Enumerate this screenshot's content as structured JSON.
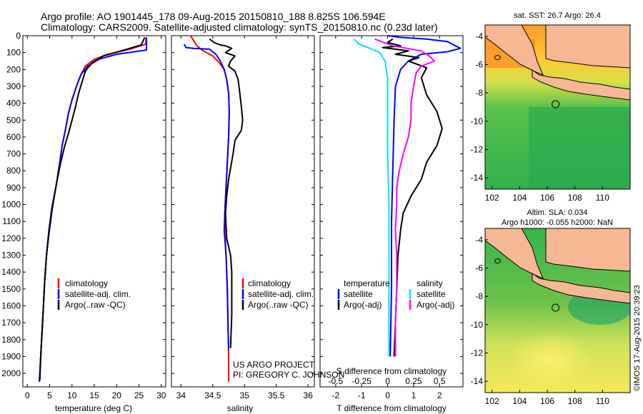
{
  "header": {
    "line1": "Argo profile: AO 1901445_178 09-Aug-2015 20150810_188 8.825S 106.594E",
    "line2": "Climatology: CARS2009. Satellite-adjusted climatology: synTS_20150810.nc (0.23d later)"
  },
  "credits": {
    "project": "US ARGO PROJECT",
    "pi": "PI: GREGORY C. JOHNSON"
  },
  "watermark": "©IMOS 17-Aug-2015 20:39:23",
  "colors": {
    "climatology": "#ff0000",
    "satellite": "#0000ff",
    "argo": "#000000",
    "sal_satellite": "#00e5ee",
    "sal_argo": "#ff00ff",
    "land": "#f6b894",
    "ocean_green": "#22b14c"
  },
  "chart_data": [
    {
      "id": "temperature",
      "type": "line",
      "xlabel": "temperature (deg C)",
      "ylabel": "",
      "xlim": [
        -1,
        31
      ],
      "ylim": [
        2080,
        0
      ],
      "xticks": [
        0,
        5,
        10,
        15,
        20,
        25,
        30
      ],
      "yticks": [
        0,
        100,
        200,
        300,
        400,
        500,
        600,
        700,
        800,
        900,
        1000,
        1100,
        1200,
        1300,
        1400,
        1500,
        1600,
        1700,
        1800,
        1900,
        2000
      ],
      "legend": {
        "placement": "lower-middle",
        "entries": [
          "climatology",
          "satellite-adj. clim.",
          "Argo(..raw -QC)"
        ]
      },
      "series": [
        {
          "name": "climatology",
          "color": "#ff0000",
          "points": [
            [
              26.6,
              10
            ],
            [
              26.5,
              50
            ],
            [
              23,
              80
            ],
            [
              18,
              110
            ],
            [
              15,
              140
            ],
            [
              13,
              180
            ],
            [
              12,
              230
            ],
            [
              11,
              300
            ],
            [
              10,
              380
            ],
            [
              9.2,
              460
            ],
            [
              8.5,
              560
            ],
            [
              7.8,
              650
            ],
            [
              7.2,
              760
            ],
            [
              6.5,
              880
            ],
            [
              5.5,
              1020
            ],
            [
              4.8,
              1160
            ],
            [
              4.3,
              1300
            ],
            [
              3.9,
              1450
            ],
            [
              3.6,
              1600
            ],
            [
              3.3,
              1750
            ],
            [
              3,
              1900
            ],
            [
              2.7,
              2050
            ]
          ]
        },
        {
          "name": "satellite-adj. clim.",
          "color": "#0000ff",
          "points": [
            [
              26.7,
              10
            ],
            [
              26.7,
              85
            ],
            [
              20,
              110
            ],
            [
              16,
              140
            ],
            [
              13.5,
              180
            ],
            [
              12,
              230
            ],
            [
              11,
              300
            ],
            [
              10,
              380
            ],
            [
              9.2,
              460
            ],
            [
              8.5,
              560
            ],
            [
              7.8,
              650
            ],
            [
              7.2,
              760
            ],
            [
              6.5,
              880
            ],
            [
              5.5,
              1020
            ],
            [
              4.8,
              1160
            ],
            [
              4.3,
              1300
            ],
            [
              3.9,
              1450
            ],
            [
              3.6,
              1600
            ],
            [
              3.3,
              1750
            ],
            [
              3,
              1900
            ],
            [
              2.7,
              2050
            ]
          ]
        },
        {
          "name": "Argo(..raw -QC)",
          "color": "#000000",
          "points": [
            [
              26.3,
              10
            ],
            [
              25.5,
              55
            ],
            [
              21,
              90
            ],
            [
              17,
              120
            ],
            [
              14.5,
              160
            ],
            [
              13,
              210
            ],
            [
              12.3,
              270
            ],
            [
              11.5,
              340
            ],
            [
              10.8,
              420
            ],
            [
              10,
              500
            ],
            [
              9.2,
              580
            ],
            [
              8.3,
              660
            ],
            [
              7.4,
              760
            ],
            [
              6.5,
              880
            ],
            [
              5.6,
              1020
            ],
            [
              4.9,
              1160
            ],
            [
              4.3,
              1300
            ],
            [
              3.9,
              1450
            ],
            [
              3.6,
              1600
            ],
            [
              3.3,
              1750
            ],
            [
              3,
              1900
            ],
            [
              2.8,
              2040
            ]
          ]
        }
      ]
    },
    {
      "id": "salinity",
      "type": "line",
      "xlabel": "salinity",
      "ylabel": "",
      "xlim": [
        33.85,
        36.1
      ],
      "ylim": [
        2080,
        0
      ],
      "xticks": [
        34,
        34.5,
        35,
        35.5,
        36
      ],
      "legend": {
        "placement": "lower-middle",
        "entries": [
          "climatology",
          "satellite-adj. clim.",
          "Argo(..raw -QC)"
        ]
      },
      "series": [
        {
          "name": "climatology",
          "color": "#ff0000",
          "points": [
            [
              34.15,
              0
            ],
            [
              34.2,
              30
            ],
            [
              34.25,
              60
            ],
            [
              34.35,
              90
            ],
            [
              34.5,
              120
            ],
            [
              34.6,
              160
            ],
            [
              34.68,
              200
            ],
            [
              34.72,
              260
            ],
            [
              34.75,
              340
            ],
            [
              34.76,
              450
            ],
            [
              34.75,
              600
            ],
            [
              34.73,
              750
            ],
            [
              34.71,
              900
            ],
            [
              34.69,
              1050
            ],
            [
              34.69,
              1150
            ],
            [
              34.71,
              1300
            ],
            [
              34.73,
              1500
            ],
            [
              34.74,
              1700
            ],
            [
              34.75,
              1900
            ],
            [
              34.75,
              2050
            ]
          ]
        },
        {
          "name": "satellite-adj. clim.",
          "color": "#0000ff",
          "points": [
            [
              34.05,
              50
            ],
            [
              34.08,
              70
            ],
            [
              34.2,
              75
            ],
            [
              34.45,
              80
            ],
            [
              34.55,
              110
            ],
            [
              34.62,
              150
            ],
            [
              34.68,
              200
            ],
            [
              34.72,
              260
            ],
            [
              34.75,
              340
            ],
            [
              34.76,
              450
            ],
            [
              34.75,
              600
            ],
            [
              34.73,
              750
            ],
            [
              34.71,
              900
            ],
            [
              34.69,
              1050
            ],
            [
              34.68,
              1150
            ],
            [
              34.71,
              1300
            ],
            [
              34.73,
              1500
            ],
            [
              34.74,
              1700
            ],
            [
              34.75,
              1860
            ]
          ]
        },
        {
          "name": "Argo(..raw -QC)",
          "color": "#000000",
          "points": [
            [
              34.45,
              20
            ],
            [
              34.52,
              40
            ],
            [
              34.62,
              55
            ],
            [
              34.7,
              60
            ],
            [
              34.8,
              75
            ],
            [
              34.7,
              100
            ],
            [
              34.85,
              120
            ],
            [
              34.78,
              150
            ],
            [
              34.75,
              180
            ],
            [
              34.85,
              210
            ],
            [
              34.9,
              260
            ],
            [
              34.92,
              320
            ],
            [
              34.95,
              420
            ],
            [
              34.97,
              500
            ],
            [
              34.95,
              560
            ],
            [
              34.85,
              620
            ],
            [
              34.82,
              700
            ],
            [
              34.75,
              850
            ],
            [
              34.72,
              950
            ],
            [
              34.7,
              1050
            ],
            [
              34.72,
              1200
            ],
            [
              34.78,
              1300
            ],
            [
              34.8,
              1400
            ],
            [
              34.8,
              1500
            ],
            [
              34.8,
              1650
            ],
            [
              34.78,
              1850
            ]
          ]
        }
      ]
    },
    {
      "id": "differences",
      "type": "line",
      "xlabel": "T difference from climatology",
      "x2label": "S difference from climatology",
      "ylabel": "",
      "xlim": [
        -2.6,
        2.9
      ],
      "ylim": [
        2080,
        0
      ],
      "xticks": [
        -2,
        -1,
        0,
        1,
        2
      ],
      "x2ticks": [
        {
          "v": -0.5,
          "label": "-0.5"
        },
        {
          "v": -0.25,
          "label": "-0.25"
        },
        {
          "v": 0,
          "label": "0"
        },
        {
          "v": 0.25,
          "label": "0.25"
        },
        {
          "v": 0.5,
          "label": "0.5"
        }
      ],
      "x2scale": 4,
      "legend": {
        "placement": "lower-middle",
        "group_titles": [
          "temperature",
          "salinity"
        ],
        "entries": [
          "satellite",
          "Argo(-adj)",
          "satellite",
          "Argo(-adj)"
        ]
      },
      "series": [
        {
          "name": "satellite",
          "group": "temperature",
          "color": "#0000ff",
          "points": [
            [
              0,
              0
            ],
            [
              0.5,
              10
            ],
            [
              1.5,
              20
            ],
            [
              2.3,
              35
            ],
            [
              2.8,
              75
            ],
            [
              2.3,
              95
            ],
            [
              1.3,
              110
            ],
            [
              0.8,
              150
            ],
            [
              0.5,
              200
            ],
            [
              0.3,
              300
            ],
            [
              0.25,
              500
            ],
            [
              0.2,
              800
            ],
            [
              0.15,
              1100
            ],
            [
              0.15,
              1500
            ],
            [
              0.1,
              1900
            ]
          ]
        },
        {
          "name": "Argo(-adj)",
          "group": "temperature",
          "color": "#000000",
          "points": [
            [
              0.2,
              20
            ],
            [
              0,
              40
            ],
            [
              0.5,
              60
            ],
            [
              -0.2,
              70
            ],
            [
              0.8,
              90
            ],
            [
              0.3,
              110
            ],
            [
              1.2,
              130
            ],
            [
              0.8,
              150
            ],
            [
              1.5,
              190
            ],
            [
              1.3,
              250
            ],
            [
              1.5,
              350
            ],
            [
              1.9,
              450
            ],
            [
              2.1,
              550
            ],
            [
              1.9,
              650
            ],
            [
              1.5,
              750
            ],
            [
              1.3,
              850
            ],
            [
              0.9,
              950
            ],
            [
              0.6,
              1050
            ],
            [
              0.5,
              1150
            ],
            [
              0.4,
              1300
            ],
            [
              0.35,
              1500
            ],
            [
              0.3,
              1700
            ],
            [
              0.25,
              1900
            ]
          ]
        },
        {
          "name": "satellite",
          "group": "salinity",
          "color": "#00e5ee",
          "points": [
            [
              -1.3,
              20
            ],
            [
              -1.1,
              50
            ],
            [
              -0.6,
              80
            ],
            [
              -0.3,
              100
            ],
            [
              -0.1,
              150
            ],
            [
              0,
              250
            ],
            [
              0,
              400
            ],
            [
              0,
              700
            ],
            [
              0.05,
              1000
            ],
            [
              0.05,
              1400
            ],
            [
              0.05,
              1900
            ]
          ]
        },
        {
          "name": "Argo(-adj)",
          "group": "salinity",
          "color": "#ff00ff",
          "points": [
            [
              -0.5,
              20
            ],
            [
              0.2,
              60
            ],
            [
              1.3,
              90
            ],
            [
              1.6,
              120
            ],
            [
              1.8,
              150
            ],
            [
              1.3,
              180
            ],
            [
              1.1,
              220
            ],
            [
              1.0,
              300
            ],
            [
              0.9,
              400
            ],
            [
              0.9,
              500
            ],
            [
              0.8,
              600
            ],
            [
              0.6,
              700
            ],
            [
              0.45,
              800
            ],
            [
              0.35,
              900
            ],
            [
              0.35,
              1000
            ],
            [
              0.3,
              1150
            ],
            [
              0.35,
              1300
            ],
            [
              0.35,
              1500
            ],
            [
              0.3,
              1700
            ],
            [
              0.3,
              1900
            ]
          ]
        }
      ]
    },
    {
      "id": "sst-map",
      "type": "heatmap",
      "title": "sat. SST: 26.7 Argo: 26.4",
      "xlim": [
        101.5,
        112
      ],
      "ylim": [
        -14.8,
        -3.2
      ],
      "xticks": [
        102,
        104,
        106,
        108,
        110
      ],
      "yticks": [
        -4,
        -6,
        -8,
        -10,
        -12,
        -14
      ],
      "float_position": [
        106.6,
        -8.8
      ],
      "other_marker": [
        102.4,
        -5.5
      ]
    },
    {
      "id": "sla-map",
      "type": "heatmap",
      "title": "Altim. SLA: 0.034",
      "subtitle": "Argo h1000: -0.055 h2000: NaN",
      "xlim": [
        101.5,
        112
      ],
      "ylim": [
        -14.8,
        -3.2
      ],
      "xticks": [
        102,
        104,
        106,
        108,
        110
      ],
      "yticks": [
        -4,
        -6,
        -8,
        -10,
        -12,
        -14
      ],
      "float_position": [
        106.6,
        -8.8
      ],
      "other_marker": [
        102.4,
        -5.5
      ]
    }
  ]
}
